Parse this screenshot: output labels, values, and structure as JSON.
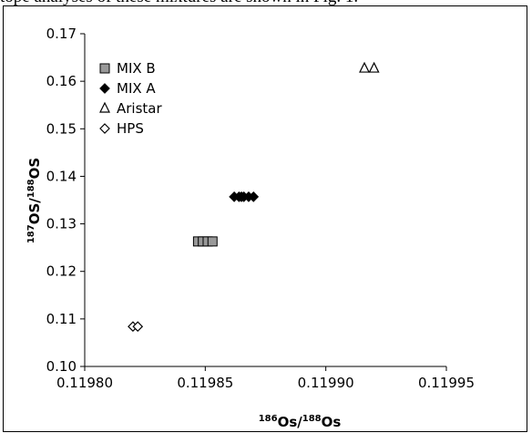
{
  "caption_fragment": "tope analyses of these mixtures are shown in Fig. 1.",
  "chart_data": {
    "type": "scatter",
    "xlim": [
      0.1198,
      0.11995
    ],
    "ylim": [
      0.1,
      0.17
    ],
    "x_ticks": [
      "0.11980",
      "0.11985",
      "0.11990",
      "0.11995"
    ],
    "y_ticks": [
      "0.10",
      "0.11",
      "0.12",
      "0.13",
      "0.14",
      "0.15",
      "0.16",
      "0.17"
    ],
    "x_tick_values": [
      0.1198,
      0.11985,
      0.1199,
      0.11995
    ],
    "y_tick_values": [
      0.1,
      0.11,
      0.12,
      0.13,
      0.14,
      0.15,
      0.16,
      0.17
    ],
    "xlabel": {
      "sup1": "186",
      "base1": "Os/",
      "sup2": "188",
      "base2": "Os"
    },
    "ylabel": {
      "sup1": "187",
      "base1": "OS/",
      "sup2": "188",
      "base2": "OS"
    },
    "grid": false,
    "legend_position": "top-left",
    "series": [
      {
        "name": "MIX B",
        "marker": "square",
        "color": "#999999",
        "points": [
          [
            0.119847,
            0.1263
          ],
          [
            0.119849,
            0.1263
          ],
          [
            0.119851,
            0.1263
          ],
          [
            0.119853,
            0.1263
          ]
        ]
      },
      {
        "name": "MIX A",
        "marker": "diamond",
        "color": "#000000",
        "points": [
          [
            0.119862,
            0.1357
          ],
          [
            0.119864,
            0.1357
          ],
          [
            0.119865,
            0.1357
          ],
          [
            0.119866,
            0.1357
          ],
          [
            0.119868,
            0.1357
          ],
          [
            0.11987,
            0.1357
          ]
        ]
      },
      {
        "name": "Aristar",
        "marker": "triangle-open",
        "color": "#000000",
        "points": [
          [
            0.119916,
            0.1627
          ],
          [
            0.11992,
            0.1627
          ]
        ]
      },
      {
        "name": "HPS",
        "marker": "diamond-open",
        "color": "#000000",
        "points": [
          [
            0.11982,
            0.1084
          ],
          [
            0.119822,
            0.1084
          ]
        ]
      }
    ]
  }
}
